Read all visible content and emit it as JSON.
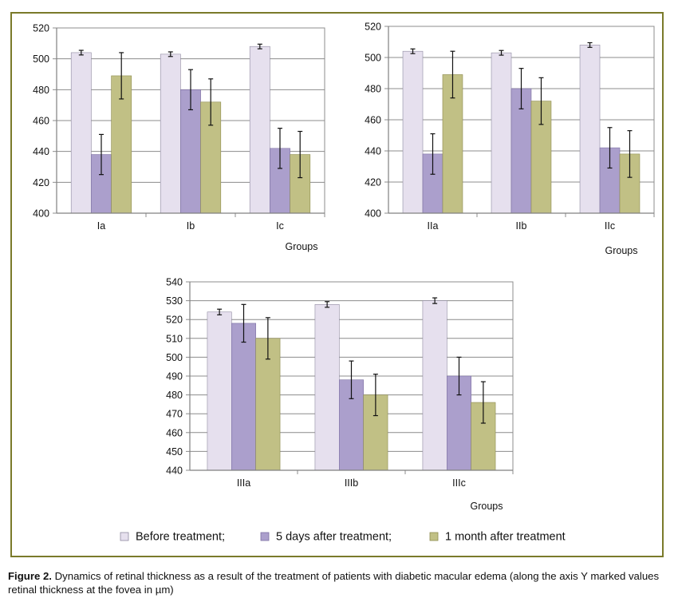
{
  "legend": [
    {
      "label": "Before treatment;",
      "color": "#e6e0ee"
    },
    {
      "label": "5 days after treatment;",
      "color": "#ab9fcc"
    },
    {
      "label": "1 month after treatment",
      "color": "#c1c085"
    }
  ],
  "caption": {
    "label": "Figure 2.",
    "text": "Dynamics of retinal thickness as a result of the treatment of patients with diabetic macular edema (along the axis Y marked values retinal thickness at the fovea in µm)"
  },
  "chart_data": [
    {
      "type": "bar",
      "xlabel": "Groups",
      "categories": [
        "Ia",
        "Ib",
        "Ic"
      ],
      "ylim": [
        400,
        520
      ],
      "yticks": [
        400,
        420,
        440,
        460,
        480,
        500,
        520
      ],
      "grid": true,
      "series": [
        {
          "name": "Before treatment;",
          "values": [
            504,
            503,
            508
          ],
          "errors": [
            1.5,
            1.5,
            1.5
          ]
        },
        {
          "name": "5 days after treatment;",
          "values": [
            438,
            480,
            442
          ],
          "errors": [
            13,
            13,
            13
          ]
        },
        {
          "name": "1 month after treatment",
          "values": [
            489,
            472,
            438
          ],
          "errors": [
            15,
            15,
            15
          ]
        }
      ]
    },
    {
      "type": "bar",
      "xlabel": "Groups",
      "categories": [
        "IIa",
        "IIb",
        "IIc"
      ],
      "ylim": [
        400,
        520
      ],
      "yticks": [
        400,
        420,
        440,
        460,
        480,
        500,
        520
      ],
      "grid": true,
      "series": [
        {
          "name": "Before treatment;",
          "values": [
            504,
            503,
            508
          ],
          "errors": [
            1.5,
            1.5,
            1.5
          ]
        },
        {
          "name": "5 days after treatment;",
          "values": [
            438,
            480,
            442
          ],
          "errors": [
            13,
            13,
            13
          ]
        },
        {
          "name": "1 month after treatment",
          "values": [
            489,
            472,
            438
          ],
          "errors": [
            15,
            15,
            15
          ]
        }
      ]
    },
    {
      "type": "bar",
      "xlabel": "Groups",
      "categories": [
        "IIIa",
        "IIIb",
        "IIIc"
      ],
      "ylim": [
        440,
        540
      ],
      "yticks": [
        440,
        450,
        460,
        470,
        480,
        490,
        500,
        510,
        520,
        530,
        540
      ],
      "grid": true,
      "series": [
        {
          "name": "Before treatment;",
          "values": [
            524,
            528,
            530
          ],
          "errors": [
            1.5,
            1.5,
            1.5
          ]
        },
        {
          "name": "5 days after treatment;",
          "values": [
            518,
            488,
            490
          ],
          "errors": [
            10,
            10,
            10
          ]
        },
        {
          "name": "1 month after treatment",
          "values": [
            510,
            480,
            476
          ],
          "errors": [
            11,
            11,
            11
          ]
        }
      ]
    }
  ]
}
